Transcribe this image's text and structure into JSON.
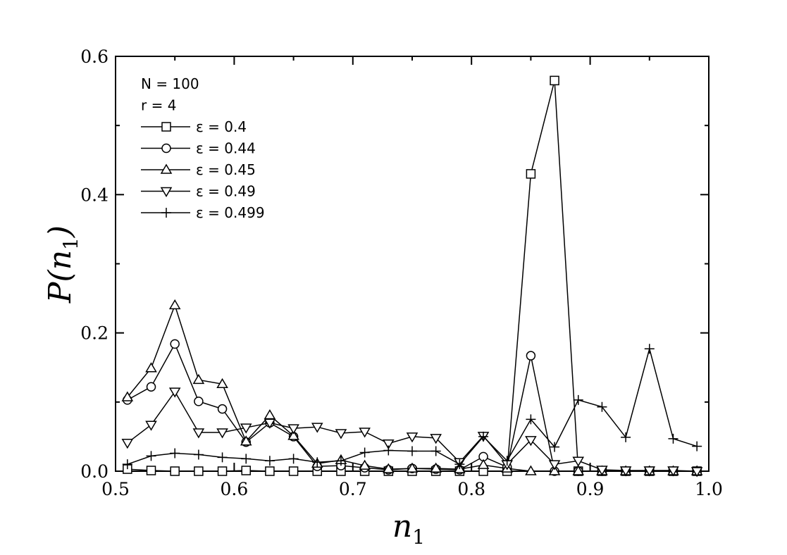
{
  "chart_data": {
    "type": "line",
    "xlabel": "n",
    "xlabel_sub": "1",
    "ylabel_prefix": "P(",
    "ylabel_var": "n",
    "ylabel_sub": "1",
    "ylabel_suffix": ")",
    "xlim": [
      0.5,
      1.0
    ],
    "ylim": [
      0.0,
      0.6
    ],
    "xticks": [
      0.5,
      0.6,
      0.7,
      0.8,
      0.9,
      1.0
    ],
    "xtick_labels": [
      "0.5",
      "0.6",
      "0.7",
      "0.8",
      "0.9",
      "1.0"
    ],
    "yticks": [
      0.0,
      0.2,
      0.4,
      0.6
    ],
    "ytick_labels": [
      "0.0",
      "0.2",
      "0.4",
      "0.6"
    ],
    "grid": false,
    "legend_position": "top-left",
    "annotations": [
      "N = 100",
      "r = 4"
    ],
    "x": [
      0.51,
      0.53,
      0.55,
      0.57,
      0.59,
      0.61,
      0.63,
      0.65,
      0.67,
      0.69,
      0.71,
      0.73,
      0.75,
      0.77,
      0.79,
      0.81,
      0.83,
      0.85,
      0.87,
      0.89,
      0.91,
      0.93,
      0.95,
      0.97,
      0.99
    ],
    "series": [
      {
        "name": "ε = 0.4",
        "marker": "square",
        "values": [
          0.003,
          0.001,
          0.0,
          0.0,
          0.0,
          0.001,
          0.0,
          0.0,
          0.0,
          0.0,
          0.0,
          0.0,
          0.0,
          0.0,
          0.0,
          0.0,
          0.0,
          0.43,
          0.565,
          0.0,
          0.0,
          0.0,
          0.0,
          0.0,
          0.0
        ]
      },
      {
        "name": "ε = 0.44",
        "marker": "circle",
        "values": [
          0.103,
          0.122,
          0.184,
          0.101,
          0.09,
          0.042,
          0.07,
          0.05,
          0.007,
          0.008,
          0.005,
          0.002,
          0.004,
          0.003,
          0.002,
          0.021,
          0.006,
          0.167,
          0.0,
          0.0,
          0.0,
          0.0,
          0.0,
          0.0,
          0.0
        ]
      },
      {
        "name": "ε = 0.45",
        "marker": "triangle-up",
        "values": [
          0.107,
          0.149,
          0.24,
          0.132,
          0.126,
          0.043,
          0.081,
          0.051,
          0.011,
          0.016,
          0.008,
          0.003,
          0.004,
          0.004,
          0.003,
          0.009,
          0.004,
          0.0,
          0.0,
          0.0,
          0.0,
          0.0,
          0.0,
          0.0,
          0.0
        ]
      },
      {
        "name": "ε = 0.49",
        "marker": "triangle-down",
        "values": [
          0.041,
          0.067,
          0.115,
          0.056,
          0.056,
          0.063,
          0.07,
          0.062,
          0.064,
          0.055,
          0.057,
          0.04,
          0.05,
          0.048,
          0.013,
          0.051,
          0.01,
          0.045,
          0.01,
          0.015,
          0.002,
          0.001,
          0.001,
          0.001,
          0.0
        ]
      },
      {
        "name": "ε = 0.499",
        "marker": "plus",
        "values": [
          0.01,
          0.022,
          0.026,
          0.024,
          0.02,
          0.018,
          0.015,
          0.018,
          0.013,
          0.015,
          0.027,
          0.03,
          0.029,
          0.029,
          0.01,
          0.05,
          0.015,
          0.075,
          0.035,
          0.103,
          0.093,
          0.049,
          0.177,
          0.047,
          0.036
        ]
      }
    ]
  }
}
